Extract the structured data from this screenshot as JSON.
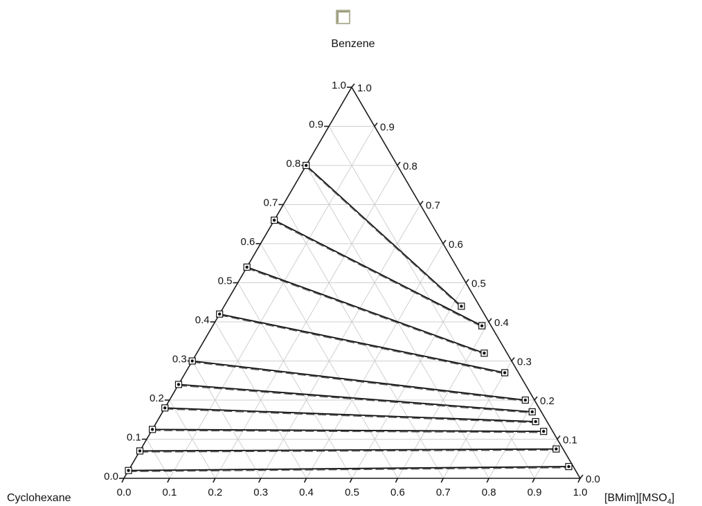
{
  "chart_data": {
    "type": "ternary",
    "vertices": {
      "top": "Benzene",
      "left": "Cyclohexane",
      "right": "[BMim][MSO",
      "right_sub": "4",
      "right_close": "]"
    },
    "bottom_ticks": [
      "0.0",
      "0.1",
      "0.2",
      "0.3",
      "0.4",
      "0.5",
      "0.6",
      "0.7",
      "0.8",
      "0.9",
      "1.0"
    ],
    "left_ticks": [
      "0.0",
      "0.1",
      "0.2",
      "0.3",
      "0.4",
      "0.5",
      "0.6",
      "0.7",
      "0.8",
      "0.9",
      "1.0"
    ],
    "right_ticks": [
      "1.0",
      "0.9",
      "0.8",
      "0.7",
      "0.6",
      "0.5",
      "0.4",
      "0.3",
      "0.2",
      "0.1",
      "0.0"
    ],
    "grid": true,
    "legend_swatch_color": "#9a9a7a",
    "tie_lines": [
      {
        "left": {
          "benzene": 0.8,
          "il": 0.0
        },
        "right": {
          "benzene": 0.44,
          "il": 0.52
        }
      },
      {
        "left": {
          "benzene": 0.66,
          "il": 0.0
        },
        "right": {
          "benzene": 0.39,
          "il": 0.59
        }
      },
      {
        "left": {
          "benzene": 0.54,
          "il": 0.0
        },
        "right": {
          "benzene": 0.32,
          "il": 0.63
        }
      },
      {
        "left": {
          "benzene": 0.42,
          "il": 0.0
        },
        "right": {
          "benzene": 0.27,
          "il": 0.7
        }
      },
      {
        "left": {
          "benzene": 0.3,
          "il": 0.0
        },
        "right": {
          "benzene": 0.2,
          "il": 0.78
        }
      },
      {
        "left": {
          "benzene": 0.24,
          "il": 0.0
        },
        "right": {
          "benzene": 0.17,
          "il": 0.81
        }
      },
      {
        "left": {
          "benzene": 0.18,
          "il": 0.0
        },
        "right": {
          "benzene": 0.145,
          "il": 0.83
        }
      },
      {
        "left": {
          "benzene": 0.125,
          "il": 0.0
        },
        "right": {
          "benzene": 0.12,
          "il": 0.86
        }
      },
      {
        "left": {
          "benzene": 0.07,
          "il": 0.0
        },
        "right": {
          "benzene": 0.075,
          "il": 0.91
        }
      },
      {
        "left": {
          "benzene": 0.02,
          "il": 0.0
        },
        "right": {
          "benzene": 0.03,
          "il": 0.96
        }
      }
    ]
  }
}
